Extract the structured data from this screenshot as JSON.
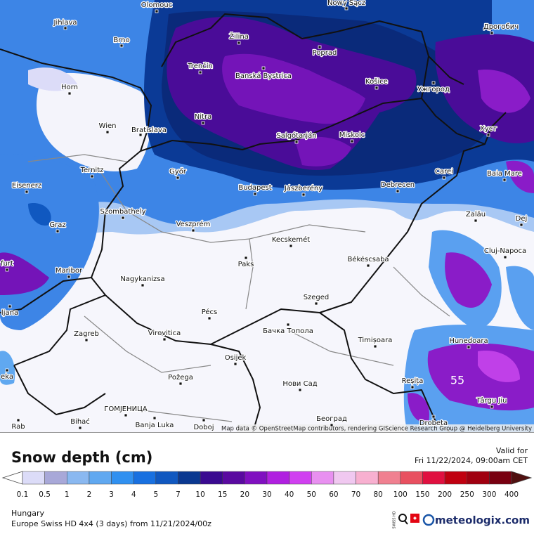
{
  "map": {
    "attribution": "Map data © OpenStreetMap contributors, rendering GIScience Research Group @ Heidelberg University",
    "annotation": "55",
    "places": [
      "Olomouc",
      "Nowy Sącz",
      "Jihlava",
      "Žilina",
      "Brno",
      "Дрогобич",
      "Poprad",
      "Trenčín",
      "Banská Bystrica",
      "Košice",
      "Ужгород",
      "Horn",
      "Nitra",
      "Wien",
      "Bratislava",
      "Хуст",
      "Salgótarján",
      "Miskolc",
      "Carei",
      "Ternitz",
      "Győr",
      "Baia Mare",
      "Eisenerz",
      "Budapest",
      "Jászberény",
      "Debrecen",
      "Szombathely",
      "Zalău",
      "Graz",
      "Veszprém",
      "Kecskemét",
      "Cluj-Napoca",
      "Paks",
      "Békéscsaba",
      "Maribor",
      "Nagykanizsa",
      "Szeged",
      "Pécs",
      "Zagreb",
      "Virovitica",
      "Бачка Топола",
      "Timișoara",
      "Hunedoara",
      "Osijek",
      "Požega",
      "Нови Сад",
      "Reșița",
      "Târgu Jiu",
      "ГОМЈЕНИЦА",
      "Bihać",
      "Banja Luka",
      "Doboj",
      "Београд",
      "Drobeta",
      "ljana",
      "eka",
      "Rab",
      "Dej",
      "furt"
    ]
  },
  "legend": {
    "title": "Snow depth (cm)",
    "ticks": [
      0.1,
      0.5,
      1,
      2,
      3,
      4,
      5,
      7,
      10,
      15,
      20,
      30,
      40,
      50,
      60,
      70,
      80,
      100,
      150,
      200,
      250,
      300,
      400
    ],
    "colors": [
      "#ffffff",
      "#dcdcf8",
      "#a8a8d8",
      "#8ab8f0",
      "#60a8f0",
      "#3090f0",
      "#1870e0",
      "#1058c0",
      "#0a3890",
      "#3a0a90",
      "#5a0aa0",
      "#8010c0",
      "#b020e0",
      "#d040f0",
      "#e890f0",
      "#f0c8f0",
      "#f8b0d0",
      "#f08090",
      "#e85060",
      "#e01040",
      "#c00010",
      "#a00010",
      "#780010",
      "#501010"
    ]
  },
  "valid": {
    "label": "Valid for",
    "time": "Fri 11/22/2024, 09:00am CET"
  },
  "info": {
    "region": "Hungary",
    "model": "Europe Swiss HD 4x4 (3 days) from 11/21/2024/00z"
  },
  "logo": {
    "badge": "SWISS HD",
    "brand": "meteologix.com"
  }
}
